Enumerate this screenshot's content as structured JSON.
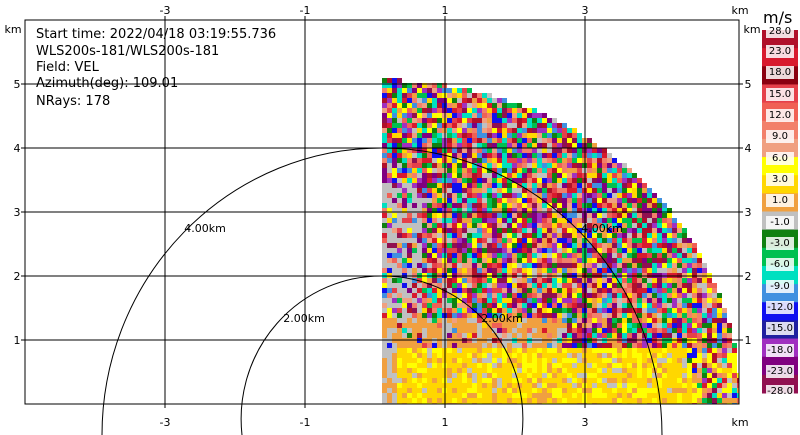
{
  "header": {
    "start_time": "Start time: 2022/04/18 03:19:55.736",
    "instrument": "WLS200s-181/WLS200s-181",
    "field": "Field: VEL",
    "azimuth": "Azimuth(deg): 109.01",
    "nrays": "NRays: 178"
  },
  "axes": {
    "unit": "km",
    "x_ticks": [
      "-3",
      "-1",
      "1",
      "3"
    ],
    "y_ticks": [
      "1",
      "2",
      "3",
      "4",
      "5"
    ]
  },
  "range_rings": [
    "2.00km",
    "4.00km",
    "2.00km",
    "4.00km"
  ],
  "colorbar": {
    "unit": "m/s",
    "labels": [
      "28.0",
      "23.0",
      "18.0",
      "15.0",
      "12.0",
      "9.0",
      "6.0",
      "3.0",
      "1.0",
      "-1.0",
      "-3.0",
      "-6.0",
      "-9.0",
      "-12.0",
      "-15.0",
      "-18.0",
      "-23.0",
      "-28.0"
    ],
    "colors": [
      "#b0102a",
      "#d81a2e",
      "#8a0010",
      "#e5404a",
      "#f06055",
      "#f2806a",
      "#f0a080",
      "#ffff00",
      "#ffd700",
      "#f0a040",
      "#c0c0c0",
      "#108010",
      "#00c050",
      "#00e0c0",
      "#4090e0",
      "#1010f0",
      "#2020a0",
      "#a030c0",
      "#800080",
      "#901050"
    ]
  }
}
